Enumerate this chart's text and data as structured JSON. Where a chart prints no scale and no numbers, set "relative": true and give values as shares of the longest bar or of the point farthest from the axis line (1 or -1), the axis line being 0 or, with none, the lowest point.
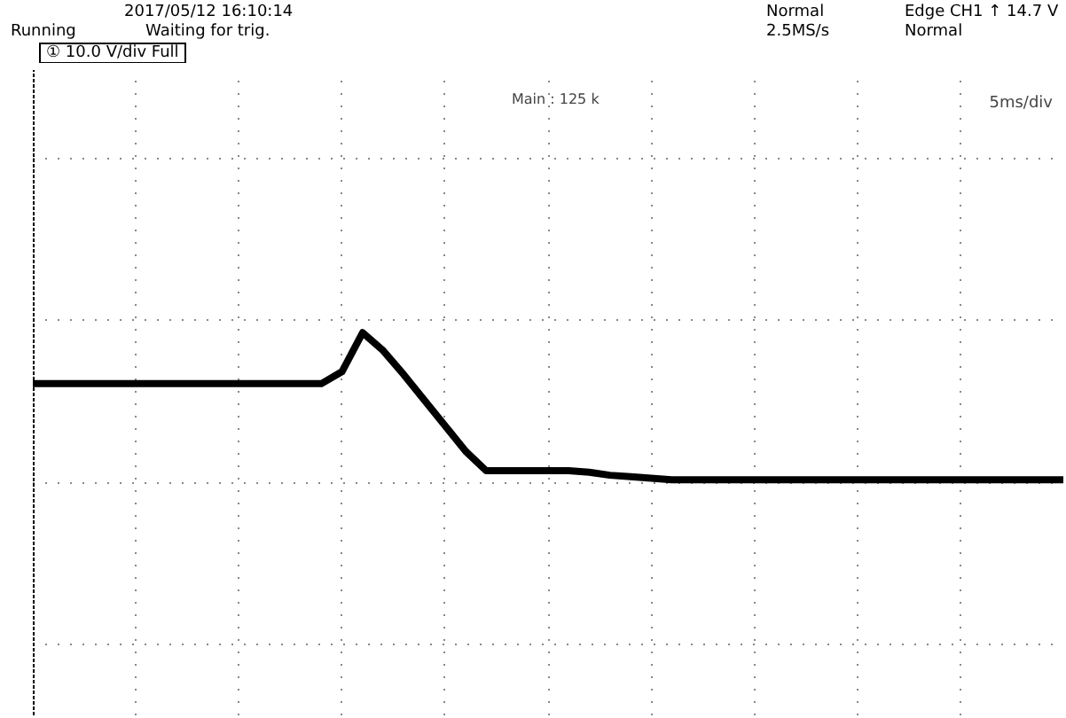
{
  "chart_data": {
    "type": "line",
    "relative": true,
    "grid": true,
    "tick_labels": false,
    "marker": "none",
    "line_style": "solid",
    "categories": [
      null,
      null,
      null,
      null,
      null,
      null,
      null,
      null,
      null,
      null,
      null,
      null,
      null,
      null,
      null,
      null,
      null,
      null,
      null,
      null,
      null,
      null,
      null,
      null,
      null,
      null,
      null,
      null,
      null,
      null,
      null,
      null,
      null,
      null,
      null,
      null,
      null,
      null,
      null,
      null,
      null,
      null,
      null,
      null,
      null,
      null,
      null,
      null,
      null,
      null,
      null
    ],
    "series": [
      {
        "color": "#000000",
        "values": [
          0.66,
          0.66,
          0.66,
          0.66,
          0.66,
          0.66,
          0.66,
          0.66,
          0.66,
          0.66,
          0.66,
          0.66,
          0.66,
          0.66,
          0.66,
          0.74,
          1,
          0.88,
          0.72,
          0.55,
          0.38,
          0.21,
          0.08,
          0.08,
          0.08,
          0.08,
          0.08,
          0.07,
          0.05,
          0.04,
          0.03,
          0.02,
          0.02,
          0.02,
          0.02,
          0.02,
          0.02,
          0.02,
          0.02,
          0.02,
          0.02,
          0.02,
          0.02,
          0.02,
          0.02,
          0.02,
          0.02,
          0.02,
          0.02,
          0.02,
          0.02
        ]
      }
    ],
    "annotations": [
      "2017/05/12 16:10:14",
      "Running",
      "Waiting for trig.",
      "Normal",
      "2.5MS/s",
      "Edge CH1 ↑ 14.7 V",
      "Normal",
      "① 10.0 V/div Full",
      "Main : 125 k",
      "5ms/div"
    ]
  }
}
